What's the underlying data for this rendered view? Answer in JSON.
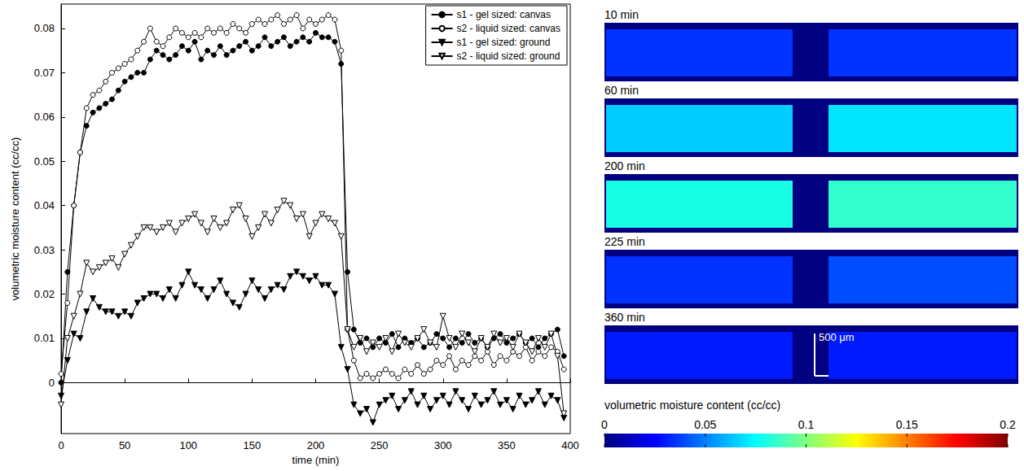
{
  "chart_data": [
    {
      "type": "line",
      "xlabel": "time (min)",
      "ylabel": "volumetric moisture content (cc/cc)",
      "xlim": [
        0,
        400
      ],
      "xticks": [
        0,
        50,
        100,
        150,
        200,
        250,
        300,
        350,
        400
      ],
      "ylim": [
        -0.0115,
        0.0855
      ],
      "yticks": [
        0,
        0.01,
        0.02,
        0.03,
        0.04,
        0.05,
        0.06,
        0.07,
        0.08
      ],
      "grid": false,
      "legend": "upper right",
      "x": [
        0,
        5,
        10,
        15,
        20,
        25,
        30,
        35,
        40,
        45,
        50,
        55,
        60,
        65,
        70,
        75,
        80,
        85,
        90,
        95,
        100,
        105,
        110,
        115,
        120,
        125,
        130,
        135,
        140,
        145,
        150,
        155,
        160,
        165,
        170,
        175,
        180,
        185,
        190,
        195,
        200,
        205,
        210,
        215,
        220,
        225,
        230,
        235,
        240,
        245,
        250,
        255,
        260,
        265,
        270,
        275,
        280,
        285,
        290,
        295,
        300,
        305,
        310,
        315,
        320,
        325,
        330,
        335,
        340,
        345,
        350,
        355,
        360,
        365,
        370,
        375,
        380,
        385,
        390,
        395
      ],
      "series": [
        {
          "name": "s1 - gel sized: canvas",
          "color": "#000000",
          "marker": "circle",
          "values": [
            0.0,
            0.025,
            0.04,
            0.052,
            0.058,
            0.061,
            0.062,
            0.063,
            0.064,
            0.066,
            0.068,
            0.069,
            0.07,
            0.07,
            0.073,
            0.075,
            0.074,
            0.073,
            0.074,
            0.076,
            0.075,
            0.077,
            0.073,
            0.075,
            0.074,
            0.076,
            0.074,
            0.075,
            0.076,
            0.077,
            0.075,
            0.076,
            0.078,
            0.076,
            0.077,
            0.078,
            0.076,
            0.077,
            0.078,
            0.077,
            0.079,
            0.078,
            0.078,
            0.077,
            0.072,
            0.025,
            0.012,
            0.009,
            0.01,
            0.008,
            0.01,
            0.009,
            0.011,
            0.008,
            0.01,
            0.009,
            0.01,
            0.008,
            0.009,
            0.011,
            0.01,
            0.008,
            0.01,
            0.009,
            0.011,
            0.009,
            0.01,
            0.008,
            0.01,
            0.011,
            0.009,
            0.01,
            0.011,
            0.009,
            0.01,
            0.008,
            0.01,
            0.011,
            0.012,
            0.006
          ]
        },
        {
          "name": "s2 - liquid sized: canvas",
          "color": "#000000",
          "marker": "open-circle",
          "values": [
            0.002,
            0.018,
            0.04,
            0.052,
            0.062,
            0.065,
            0.066,
            0.068,
            0.07,
            0.071,
            0.072,
            0.073,
            0.075,
            0.077,
            0.08,
            0.077,
            0.076,
            0.078,
            0.08,
            0.079,
            0.078,
            0.079,
            0.078,
            0.08,
            0.079,
            0.08,
            0.079,
            0.081,
            0.08,
            0.079,
            0.081,
            0.082,
            0.081,
            0.082,
            0.083,
            0.081,
            0.082,
            0.083,
            0.08,
            0.082,
            0.081,
            0.082,
            0.083,
            0.082,
            0.075,
            0.012,
            0.005,
            0.001,
            0.002,
            0.001,
            0.002,
            0.003,
            0.002,
            0.001,
            0.003,
            0.002,
            0.004,
            0.002,
            0.003,
            0.005,
            0.004,
            0.006,
            0.003,
            0.005,
            0.004,
            0.006,
            0.005,
            0.007,
            0.004,
            0.006,
            0.005,
            0.007,
            0.006,
            0.008,
            0.005,
            0.007,
            0.006,
            0.008,
            0.007,
            0.003
          ]
        },
        {
          "name": "s1 - gel sized: ground",
          "color": "#000000",
          "marker": "triangle-down",
          "values": [
            -0.003,
            0.005,
            0.011,
            0.01,
            0.016,
            0.019,
            0.017,
            0.016,
            0.016,
            0.015,
            0.016,
            0.015,
            0.018,
            0.019,
            0.02,
            0.02,
            0.019,
            0.021,
            0.019,
            0.022,
            0.025,
            0.022,
            0.021,
            0.019,
            0.021,
            0.023,
            0.02,
            0.018,
            0.017,
            0.02,
            0.023,
            0.021,
            0.019,
            0.021,
            0.022,
            0.021,
            0.024,
            0.025,
            0.024,
            0.023,
            0.024,
            0.022,
            0.022,
            0.02,
            0.008,
            0.003,
            -0.005,
            -0.007,
            -0.006,
            -0.009,
            -0.005,
            -0.004,
            -0.003,
            -0.006,
            -0.004,
            -0.002,
            -0.005,
            -0.003,
            -0.006,
            -0.004,
            -0.003,
            -0.005,
            -0.002,
            -0.004,
            -0.006,
            -0.003,
            -0.005,
            -0.004,
            -0.002,
            -0.005,
            -0.004,
            -0.006,
            -0.003,
            -0.005,
            -0.004,
            -0.002,
            -0.005,
            -0.003,
            -0.004,
            -0.008
          ]
        },
        {
          "name": "s2 - liquid sized: ground",
          "color": "#000000",
          "marker": "open-triangle-down",
          "values": [
            -0.005,
            0.01,
            0.015,
            0.02,
            0.027,
            0.025,
            0.026,
            0.027,
            0.028,
            0.026,
            0.029,
            0.031,
            0.033,
            0.035,
            0.035,
            0.034,
            0.035,
            0.036,
            0.034,
            0.036,
            0.037,
            0.038,
            0.036,
            0.034,
            0.037,
            0.035,
            0.036,
            0.039,
            0.04,
            0.037,
            0.033,
            0.035,
            0.038,
            0.036,
            0.039,
            0.041,
            0.04,
            0.037,
            0.038,
            0.033,
            0.036,
            0.038,
            0.037,
            0.036,
            0.033,
            0.012,
            0.008,
            0.01,
            0.007,
            0.009,
            0.008,
            0.01,
            0.007,
            0.011,
            0.009,
            0.008,
            0.01,
            0.012,
            0.009,
            0.008,
            0.015,
            0.01,
            0.008,
            0.011,
            0.009,
            0.007,
            0.01,
            0.008,
            0.011,
            0.009,
            0.01,
            0.008,
            0.011,
            0.009,
            0.007,
            0.01,
            0.008,
            0.011,
            0.006,
            -0.007
          ]
        }
      ]
    },
    {
      "type": "heatmap",
      "panels": [
        {
          "title": "10 min",
          "values": [
            0.035,
            0.035
          ]
        },
        {
          "title": "60 min",
          "values": [
            0.065,
            0.07
          ]
        },
        {
          "title": "200 min",
          "values": [
            0.08,
            0.085
          ]
        },
        {
          "title": "225 min",
          "values": [
            0.035,
            0.04
          ]
        },
        {
          "title": "360 min",
          "values": [
            0.03,
            0.03
          ]
        }
      ],
      "scale_bar": "500 μm",
      "colorbar": {
        "label": "volumetric moisture content (cc/cc)",
        "range": [
          0,
          0.2
        ],
        "ticks": [
          0,
          0.05,
          0.1,
          0.15,
          0.2
        ]
      }
    }
  ]
}
